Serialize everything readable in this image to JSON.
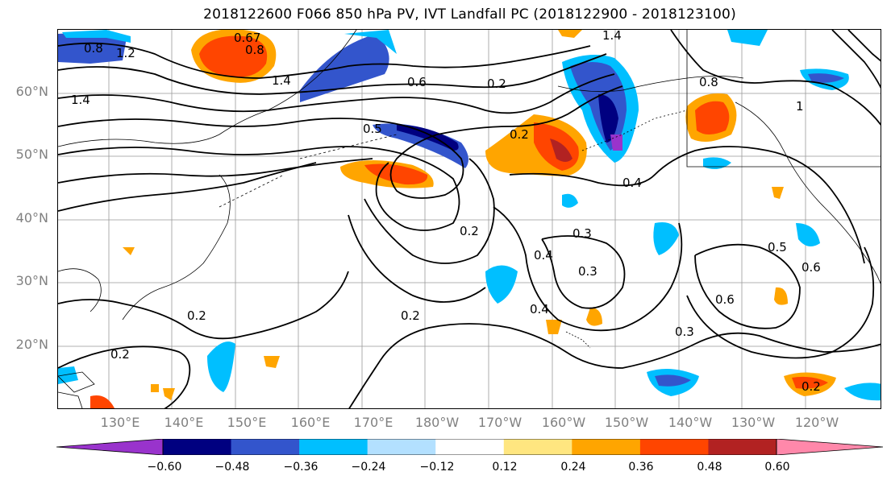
{
  "title": "2018122600 F066 850 hPa PV, IVT Landfall PC (2018122900 - 2018123100)",
  "lat_labels": [
    "60°N",
    "50°N",
    "40°N",
    "30°N",
    "20°N"
  ],
  "lon_labels": [
    "130°E",
    "140°E",
    "150°E",
    "160°E",
    "170°E",
    "180°W",
    "170°W",
    "160°W",
    "150°W",
    "140°W",
    "130°W",
    "120°W"
  ],
  "colorbar": {
    "ticks": [
      "−0.60",
      "−0.48",
      "−0.36",
      "−0.24",
      "−0.12",
      "0.12",
      "0.24",
      "0.36",
      "0.48",
      "0.60"
    ],
    "colors": [
      "#9933cc",
      "#000080",
      "#3355cc",
      "#00bfff",
      "#b3e0ff",
      "#ffffff",
      "#ffe680",
      "#ffa500",
      "#ff4500",
      "#b22222",
      "#ff88aa"
    ]
  },
  "contour_labels": [
    "0.8",
    "1.2",
    "0.67",
    "0.8",
    "1.4",
    "1.4",
    "0.6",
    "0.2",
    "1.4",
    "0.8",
    "0.5",
    "0.2",
    "0.2",
    "0.4",
    "0.3",
    "0.4",
    "0.4",
    "0.5",
    "0.6",
    "0.6",
    "0.2",
    "0.2",
    "0.2",
    "0.3",
    "0.3",
    "0.2",
    "1"
  ]
}
